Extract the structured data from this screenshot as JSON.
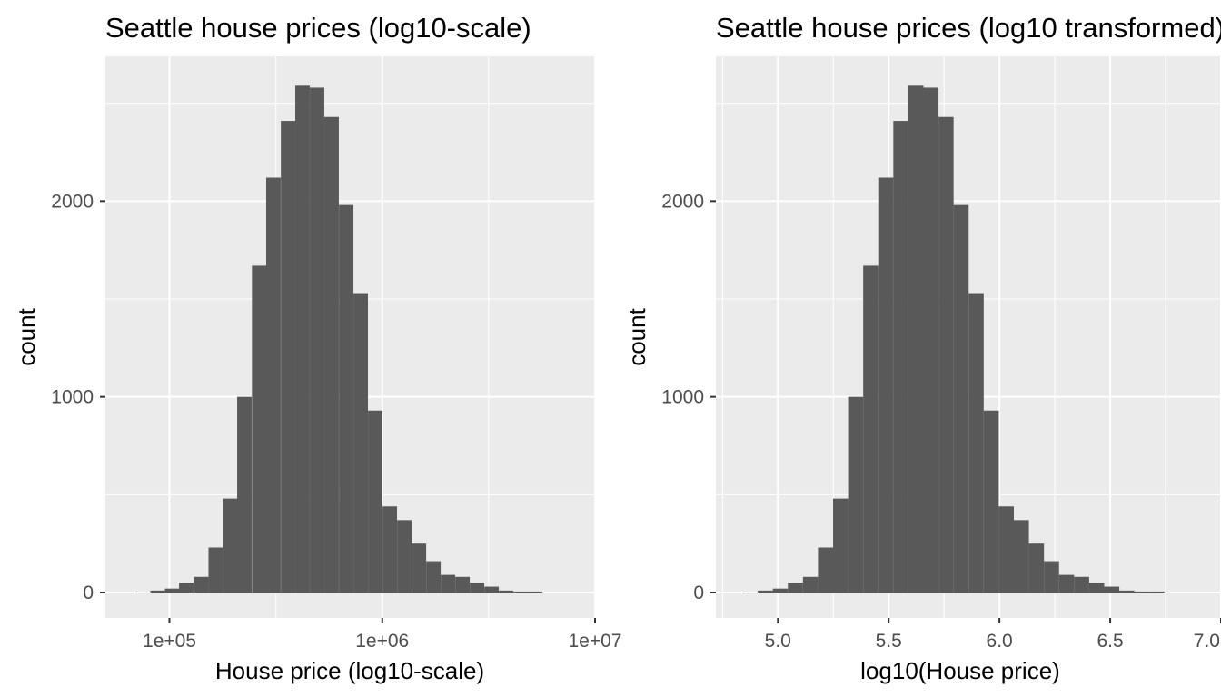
{
  "chart_data": [
    {
      "type": "bar",
      "title": "Seattle house prices (log10-scale)",
      "xlabel": "House price (log10-scale)",
      "ylabel": "count",
      "x_scale": "log10",
      "x_ticks": [
        100000,
        1000000,
        10000000
      ],
      "x_tick_labels": [
        "1e+05",
        "1e+06",
        "1e+07"
      ],
      "xlim": [
        50000,
        10000000
      ],
      "y_ticks": [
        0,
        1000,
        2000
      ],
      "y_tick_labels": [
        "0",
        "1000",
        "2000"
      ],
      "ylim": [
        -130,
        2740
      ],
      "grid": true,
      "bin_width_log10": 0.068,
      "bin_centers": [
        75000,
        88000,
        103000,
        120000,
        141000,
        165000,
        193000,
        225000,
        264000,
        308000,
        361000,
        422000,
        494000,
        578000,
        677000,
        792000,
        927000,
        1085000,
        1270000,
        1487000,
        1740000,
        2036000,
        2383000,
        2789000,
        3264000,
        3820000,
        4471000,
        5233000
      ],
      "values": [
        0,
        10,
        20,
        50,
        80,
        230,
        480,
        1000,
        1670,
        2120,
        2410,
        2590,
        2580,
        2430,
        1980,
        1530,
        930,
        440,
        370,
        250,
        160,
        90,
        80,
        50,
        30,
        10,
        5,
        5
      ],
      "bar_color": "#595959",
      "panel_color": "#ebebeb"
    },
    {
      "type": "bar",
      "title": "Seattle house prices (log10 transformed)",
      "xlabel": "log10(House price)",
      "ylabel": "count",
      "x_scale": "linear",
      "x_ticks": [
        5.0,
        5.5,
        6.0,
        6.5,
        7.0
      ],
      "x_tick_labels": [
        "5.0",
        "5.5",
        "6.0",
        "6.5",
        "7.0"
      ],
      "xlim": [
        4.72,
        7.0
      ],
      "y_ticks": [
        0,
        1000,
        2000
      ],
      "y_tick_labels": [
        "0",
        "1000",
        "2000"
      ],
      "ylim": [
        -130,
        2740
      ],
      "grid": true,
      "bin_width": 0.068,
      "bin_centers": [
        4.875,
        4.943,
        5.011,
        5.079,
        5.147,
        5.215,
        5.283,
        5.351,
        5.419,
        5.487,
        5.555,
        5.623,
        5.691,
        5.759,
        5.827,
        5.895,
        5.963,
        6.031,
        6.099,
        6.167,
        6.235,
        6.303,
        6.371,
        6.439,
        6.507,
        6.575,
        6.643,
        6.711
      ],
      "values": [
        0,
        10,
        20,
        50,
        80,
        230,
        480,
        1000,
        1670,
        2120,
        2410,
        2590,
        2580,
        2430,
        1980,
        1530,
        930,
        440,
        370,
        250,
        160,
        90,
        80,
        50,
        30,
        10,
        5,
        5
      ],
      "bar_color": "#595959",
      "panel_color": "#ebebeb"
    }
  ]
}
